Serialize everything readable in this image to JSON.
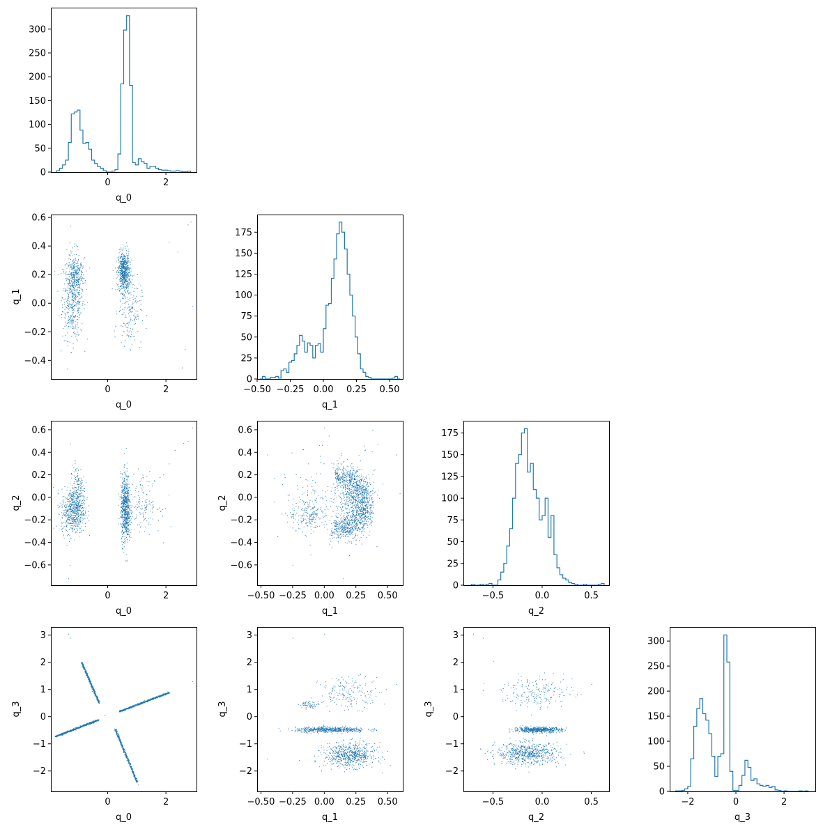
{
  "colors": {
    "series": "#1f77b4",
    "axes": "#000000",
    "background": "#ffffff"
  },
  "variables": [
    "q_0",
    "q_1",
    "q_2",
    "q_3"
  ],
  "chart_data": [
    {
      "panel": "q_0 histogram",
      "type": "step-histogram",
      "xlabel": "q_0",
      "ylabel": "",
      "xlim": [
        -1.95,
        3.05
      ],
      "ylim": [
        0,
        345
      ],
      "xticks": [
        0,
        2
      ],
      "xtick_labels": [
        "0",
        "2"
      ],
      "yticks": [
        0,
        50,
        100,
        150,
        200,
        250,
        300
      ],
      "ytick_labels": [
        "0",
        "50",
        "100",
        "150",
        "200",
        "250",
        "300"
      ],
      "bin_edges": [
        -1.75,
        -1.65,
        -1.55,
        -1.45,
        -1.35,
        -1.25,
        -1.15,
        -1.05,
        -0.95,
        -0.85,
        -0.75,
        -0.65,
        -0.55,
        -0.45,
        -0.35,
        -0.25,
        -0.15,
        -0.05,
        0.05,
        0.15,
        0.25,
        0.35,
        0.45,
        0.55,
        0.65,
        0.75,
        0.85,
        0.95,
        1.05,
        1.15,
        1.25,
        1.35,
        1.45,
        1.55,
        1.65,
        1.75,
        1.85,
        1.95,
        2.05,
        2.15,
        2.25,
        2.35,
        2.45,
        2.55,
        2.65,
        2.75,
        2.85
      ],
      "counts": [
        3,
        8,
        15,
        25,
        62,
        122,
        126,
        130,
        88,
        60,
        62,
        48,
        25,
        18,
        12,
        8,
        3,
        0,
        0,
        2,
        5,
        38,
        185,
        298,
        328,
        182,
        20,
        15,
        28,
        22,
        18,
        8,
        12,
        12,
        8,
        5,
        4,
        4,
        3,
        2,
        2,
        3,
        2,
        1,
        1,
        2
      ]
    },
    {
      "panel": "q_1 histogram",
      "type": "step-histogram",
      "xlabel": "q_1",
      "ylabel": "",
      "xlim": [
        -0.5,
        0.6
      ],
      "ylim": [
        0,
        196
      ],
      "xticks": [
        -0.5,
        -0.25,
        0,
        0.25,
        0.5
      ],
      "xtick_labels": [
        "−0.50",
        "−0.25",
        "0.00",
        "0.25",
        "0.50"
      ],
      "yticks": [
        0,
        25,
        50,
        75,
        100,
        125,
        150,
        175
      ],
      "ytick_labels": [
        "0",
        "25",
        "50",
        "75",
        "100",
        "125",
        "150",
        "175"
      ],
      "bin_edges": [
        -0.48,
        -0.46,
        -0.44,
        -0.42,
        -0.4,
        -0.38,
        -0.36,
        -0.34,
        -0.32,
        -0.3,
        -0.28,
        -0.26,
        -0.24,
        -0.22,
        -0.2,
        -0.18,
        -0.16,
        -0.14,
        -0.12,
        -0.1,
        -0.08,
        -0.06,
        -0.04,
        -0.02,
        0.0,
        0.02,
        0.04,
        0.06,
        0.08,
        0.1,
        0.12,
        0.14,
        0.16,
        0.18,
        0.2,
        0.22,
        0.24,
        0.26,
        0.28,
        0.3,
        0.32,
        0.34,
        0.36,
        0.38,
        0.4,
        0.42,
        0.44,
        0.46,
        0.48,
        0.5,
        0.52,
        0.54,
        0.56,
        0.58
      ],
      "counts": [
        0,
        3,
        0,
        0,
        2,
        2,
        3,
        1,
        10,
        12,
        8,
        20,
        22,
        30,
        40,
        52,
        45,
        32,
        43,
        40,
        25,
        40,
        42,
        32,
        60,
        88,
        90,
        120,
        143,
        173,
        187,
        175,
        155,
        125,
        100,
        75,
        50,
        30,
        12,
        8,
        3,
        2,
        0,
        0,
        0,
        0,
        0,
        0,
        0,
        0,
        1,
        3,
        0
      ]
    },
    {
      "panel": "q_2 histogram",
      "type": "step-histogram",
      "xlabel": "q_2",
      "ylabel": "",
      "xlim": [
        -0.8,
        0.68
      ],
      "ylim": [
        0,
        189
      ],
      "xticks": [
        -0.5,
        0,
        0.5
      ],
      "xtick_labels": [
        "−0.5",
        "0.0",
        "0.5"
      ],
      "yticks": [
        0,
        25,
        50,
        75,
        100,
        125,
        150,
        175
      ],
      "ytick_labels": [
        "0",
        "25",
        "50",
        "75",
        "100",
        "125",
        "150",
        "175"
      ],
      "bin_edges": [
        -0.72,
        -0.69,
        -0.66,
        -0.63,
        -0.6,
        -0.57,
        -0.54,
        -0.51,
        -0.48,
        -0.45,
        -0.42,
        -0.39,
        -0.36,
        -0.33,
        -0.3,
        -0.27,
        -0.24,
        -0.21,
        -0.18,
        -0.15,
        -0.12,
        -0.09,
        -0.06,
        -0.03,
        0.0,
        0.03,
        0.06,
        0.09,
        0.12,
        0.15,
        0.18,
        0.21,
        0.24,
        0.27,
        0.3,
        0.33,
        0.36,
        0.39,
        0.42,
        0.45,
        0.48,
        0.51,
        0.54,
        0.57,
        0.6,
        0.63
      ],
      "counts": [
        1,
        0,
        0,
        1,
        0,
        1,
        2,
        0,
        0,
        6,
        15,
        25,
        45,
        65,
        100,
        140,
        150,
        175,
        180,
        130,
        140,
        110,
        100,
        75,
        80,
        100,
        55,
        80,
        35,
        20,
        12,
        8,
        6,
        3,
        2,
        1,
        0,
        0,
        1,
        0,
        0,
        0,
        0,
        1,
        2
      ]
    },
    {
      "panel": "q_3 histogram",
      "type": "step-histogram",
      "xlabel": "q_3",
      "ylabel": "",
      "xlim": [
        -2.75,
        3.3
      ],
      "ylim": [
        0,
        328
      ],
      "xticks": [
        -2,
        0,
        2
      ],
      "xtick_labels": [
        "−2",
        "0",
        "2"
      ],
      "yticks": [
        0,
        50,
        100,
        150,
        200,
        250,
        300
      ],
      "ytick_labels": [
        "0",
        "50",
        "100",
        "150",
        "200",
        "250",
        "300"
      ],
      "bin_edges": [
        -2.5,
        -2.375,
        -2.25,
        -2.125,
        -2.0,
        -1.875,
        -1.75,
        -1.625,
        -1.5,
        -1.375,
        -1.25,
        -1.125,
        -1.0,
        -0.875,
        -0.75,
        -0.625,
        -0.5,
        -0.375,
        -0.25,
        -0.125,
        0.0,
        0.125,
        0.25,
        0.375,
        0.5,
        0.625,
        0.75,
        0.875,
        1.0,
        1.125,
        1.25,
        1.375,
        1.5,
        1.625,
        1.75,
        1.875,
        2.0,
        2.125,
        2.25,
        2.375,
        2.5,
        2.625,
        2.75,
        2.875,
        3.0
      ],
      "counts": [
        1,
        1,
        2,
        5,
        10,
        65,
        130,
        165,
        185,
        155,
        142,
        115,
        70,
        30,
        70,
        75,
        312,
        258,
        40,
        2,
        2,
        12,
        32,
        62,
        48,
        22,
        25,
        15,
        12,
        10,
        12,
        8,
        10,
        3,
        2,
        0,
        1,
        0,
        0,
        0,
        0,
        1,
        0,
        1
      ]
    },
    {
      "panel": "q_1 vs q_0",
      "type": "scatter",
      "xlabel": "q_0",
      "ylabel": "q_1",
      "xlim": [
        -1.95,
        3.05
      ],
      "ylim": [
        -0.53,
        0.62
      ],
      "xticks": [
        0,
        2
      ],
      "xtick_labels": [
        "0",
        "2"
      ],
      "yticks": [
        -0.4,
        -0.2,
        0,
        0.2,
        0.4,
        0.6
      ],
      "ytick_labels": [
        "−0.4",
        "−0.2",
        "0.0",
        "0.2",
        "0.4",
        "0.6"
      ],
      "clusters": [
        {
          "n": 520,
          "mode": "gauss",
          "cx": -1.2,
          "cy": 0.05,
          "sx": 0.18,
          "sy": 0.15
        },
        {
          "n": 180,
          "mode": "gauss",
          "cx": -1.1,
          "cy": 0.2,
          "sx": 0.15,
          "sy": 0.06
        },
        {
          "n": 650,
          "mode": "gauss",
          "cx": 0.55,
          "cy": 0.22,
          "sx": 0.1,
          "sy": 0.07
        },
        {
          "n": 180,
          "mode": "gauss",
          "cx": 0.75,
          "cy": -0.05,
          "sx": 0.2,
          "sy": 0.12
        }
      ],
      "points": [
        [
          2.85,
          0.57
        ],
        [
          2.75,
          0.55
        ],
        [
          2.4,
          0.36
        ],
        [
          2.55,
          -0.45
        ],
        [
          2.65,
          -0.32
        ],
        [
          2.9,
          -0.02
        ],
        [
          2.1,
          0.43
        ]
      ]
    },
    {
      "panel": "q_2 vs q_0",
      "type": "scatter",
      "xlabel": "q_0",
      "ylabel": "q_2",
      "xlim": [
        -1.95,
        3.05
      ],
      "ylim": [
        -0.78,
        0.68
      ],
      "xticks": [
        0,
        2
      ],
      "xtick_labels": [
        "0",
        "2"
      ],
      "yticks": [
        -0.6,
        -0.4,
        -0.2,
        0,
        0.2,
        0.4,
        0.6
      ],
      "ytick_labels": [
        "−0.6",
        "−0.4",
        "−0.2",
        "0.0",
        "0.2",
        "0.4",
        "0.6"
      ],
      "clusters": [
        {
          "n": 550,
          "mode": "gauss",
          "cx": -1.2,
          "cy": -0.12,
          "sx": 0.2,
          "sy": 0.1
        },
        {
          "n": 180,
          "mode": "gauss",
          "cx": -1.05,
          "cy": 0.05,
          "sx": 0.12,
          "sy": 0.12
        },
        {
          "n": 700,
          "mode": "gauss",
          "cx": 0.6,
          "cy": -0.1,
          "sx": 0.08,
          "sy": 0.15
        },
        {
          "n": 150,
          "mode": "gauss",
          "cx": 1.2,
          "cy": -0.05,
          "sx": 0.3,
          "sy": 0.12
        }
      ],
      "points": [
        [
          2.9,
          0.62
        ],
        [
          2.75,
          0.5
        ],
        [
          2.6,
          0.48
        ],
        [
          2.3,
          0.42
        ],
        [
          -1.3,
          -0.6
        ],
        [
          -1.35,
          -0.72
        ],
        [
          1.9,
          -0.4
        ],
        [
          2.1,
          0.3
        ]
      ]
    },
    {
      "panel": "q_2 vs q_1",
      "type": "scatter",
      "xlabel": "q_1",
      "ylabel": "q_2",
      "xlim": [
        -0.53,
        0.62
      ],
      "ylim": [
        -0.78,
        0.68
      ],
      "xticks": [
        -0.5,
        -0.25,
        0,
        0.25,
        0.5
      ],
      "xtick_labels": [
        "−0.50",
        "−0.25",
        "0.00",
        "0.25",
        "0.50"
      ],
      "yticks": [
        -0.6,
        -0.4,
        -0.2,
        0,
        0.2,
        0.4,
        0.6
      ],
      "ytick_labels": [
        "−0.6",
        "−0.4",
        "−0.2",
        "0.0",
        "0.2",
        "0.4",
        "0.6"
      ],
      "clusters": [
        {
          "n": 1100,
          "mode": "ring",
          "cx": 0.12,
          "cy": -0.05,
          "rx": 0.2,
          "ry": 0.24,
          "sr": 0.05,
          "a0": -1.9,
          "a1": 1.75
        },
        {
          "n": 450,
          "mode": "gauss",
          "cx": 0.22,
          "cy": -0.05,
          "sx": 0.07,
          "sy": 0.14
        },
        {
          "n": 200,
          "mode": "gauss",
          "cx": -0.12,
          "cy": -0.15,
          "sx": 0.08,
          "sy": 0.08
        },
        {
          "n": 150,
          "mode": "gauss",
          "cx": 0.05,
          "cy": 0.05,
          "sx": 0.2,
          "sy": 0.2
        }
      ],
      "points": [
        [
          0.0,
          0.62
        ],
        [
          0.38,
          0.6
        ],
        [
          0.57,
          0.38
        ],
        [
          -0.25,
          -0.6
        ],
        [
          0.15,
          -0.72
        ],
        [
          -0.45,
          0.38
        ]
      ]
    },
    {
      "panel": "q_3 vs q_0",
      "type": "scatter",
      "xlabel": "q_0",
      "ylabel": "q_3",
      "xlim": [
        -1.95,
        3.05
      ],
      "ylim": [
        -2.75,
        3.3
      ],
      "xticks": [
        0,
        2
      ],
      "xtick_labels": [
        "0",
        "2"
      ],
      "yticks": [
        -2,
        -1,
        0,
        1,
        2,
        3
      ],
      "ytick_labels": [
        "−2",
        "−1",
        "0",
        "1",
        "2",
        "3"
      ],
      "clusters": [
        {
          "n": 700,
          "mode": "line",
          "x0": -1.8,
          "y0": -0.72,
          "x1": -0.3,
          "y1": -0.1,
          "sd": 0.015
        },
        {
          "n": 700,
          "mode": "line",
          "x0": 0.4,
          "y0": 0.2,
          "x1": 2.1,
          "y1": 0.9,
          "sd": 0.015
        },
        {
          "n": 450,
          "mode": "line",
          "x0": -0.9,
          "y0": 2.0,
          "x1": -0.3,
          "y1": 0.5,
          "sd": 0.015
        },
        {
          "n": 450,
          "mode": "line",
          "x0": 0.25,
          "y0": -0.45,
          "x1": 1.0,
          "y1": -2.4,
          "sd": 0.015
        }
      ],
      "points": [
        [
          -1.35,
          3.05
        ],
        [
          -1.3,
          2.9
        ],
        [
          2.9,
          1.3
        ],
        [
          2.95,
          1.25
        ],
        [
          1.05,
          -2.5
        ],
        [
          -0.1,
          0.05
        ]
      ]
    },
    {
      "panel": "q_3 vs q_1",
      "type": "scatter",
      "xlabel": "q_1",
      "ylabel": "q_3",
      "xlim": [
        -0.53,
        0.62
      ],
      "ylim": [
        -2.75,
        3.3
      ],
      "xticks": [
        -0.5,
        -0.25,
        0,
        0.25,
        0.5
      ],
      "xtick_labels": [
        "−0.50",
        "−0.25",
        "0.00",
        "0.25",
        "0.50"
      ],
      "yticks": [
        -2,
        -1,
        0,
        1,
        2,
        3
      ],
      "ytick_labels": [
        "−2",
        "−1",
        "0",
        "1",
        "2",
        "3"
      ],
      "clusters": [
        {
          "n": 550,
          "mode": "gauss",
          "cx": 0.05,
          "cy": -0.47,
          "sx": 0.14,
          "sy": 0.05
        },
        {
          "n": 650,
          "mode": "gauss",
          "cx": 0.2,
          "cy": -1.4,
          "sx": 0.1,
          "sy": 0.22
        },
        {
          "n": 180,
          "mode": "gauss",
          "cx": 0.2,
          "cy": 0.9,
          "sx": 0.12,
          "sy": 0.3
        },
        {
          "n": 60,
          "mode": "gauss",
          "cx": -0.12,
          "cy": 0.45,
          "sx": 0.04,
          "sy": 0.06
        }
      ],
      "points": [
        [
          -0.25,
          2.9
        ],
        [
          0.0,
          3.05
        ],
        [
          0.57,
          1.2
        ],
        [
          -0.45,
          -1.55
        ],
        [
          -0.2,
          -1.6
        ]
      ]
    },
    {
      "panel": "q_3 vs q_2",
      "type": "scatter",
      "xlabel": "q_2",
      "ylabel": "q_3",
      "xlim": [
        -0.8,
        0.68
      ],
      "ylim": [
        -2.75,
        3.3
      ],
      "xticks": [
        -0.5,
        0,
        0.5
      ],
      "xtick_labels": [
        "−0.5",
        "0.0",
        "0.5"
      ],
      "yticks": [
        -2,
        -1,
        0,
        1,
        2,
        3
      ],
      "ytick_labels": [
        "−2",
        "−1",
        "0",
        "1",
        "2",
        "3"
      ],
      "clusters": [
        {
          "n": 550,
          "mode": "gauss",
          "cx": -0.05,
          "cy": -0.47,
          "sx": 0.12,
          "sy": 0.05
        },
        {
          "n": 650,
          "mode": "gauss",
          "cx": -0.15,
          "cy": -1.35,
          "sx": 0.16,
          "sy": 0.2
        },
        {
          "n": 200,
          "mode": "gauss",
          "cx": -0.05,
          "cy": 0.9,
          "sx": 0.18,
          "sy": 0.28
        }
      ],
      "points": [
        [
          -0.7,
          3.05
        ],
        [
          -0.6,
          2.9
        ],
        [
          -0.5,
          2.05
        ],
        [
          0.5,
          1.2
        ],
        [
          0.3,
          1.4
        ]
      ]
    }
  ]
}
